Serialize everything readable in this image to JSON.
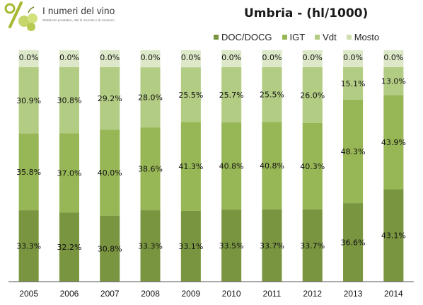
{
  "logo": {
    "title": "I numeri del vino",
    "subtitle": "Statistiche produttive, dati di mercato e di consumo"
  },
  "colors": {
    "DOC/DOCG": "#7a9540",
    "IGT": "#97b655",
    "Vdt": "#b3cc83",
    "Mosto": "#d0dfb0",
    "background_band": "#dce8c8"
  },
  "chart_data": {
    "type": "bar",
    "stacked": true,
    "percent": true,
    "title": "Umbria - (hl/1000)",
    "xlabel": "",
    "ylabel": "",
    "ylim": [
      0,
      100
    ],
    "legend_position": "top-right",
    "categories": [
      "2005",
      "2006",
      "2007",
      "2008",
      "2009",
      "2010",
      "2011",
      "2012",
      "2013",
      "2014"
    ],
    "series": [
      {
        "name": "DOC/DOCG",
        "values": [
          33.3,
          32.2,
          30.8,
          33.3,
          33.1,
          33.5,
          33.7,
          33.7,
          36.6,
          43.1
        ],
        "labels": [
          "33.3%",
          "32.2%",
          "30.8%",
          "33.3%",
          "33.1%",
          "33.5%",
          "33.7%",
          "33.7%",
          "36.6%",
          "43.1%"
        ]
      },
      {
        "name": "IGT",
        "values": [
          35.8,
          37.0,
          40.0,
          38.6,
          41.3,
          40.8,
          40.8,
          40.3,
          48.3,
          43.9
        ],
        "labels": [
          "35.8%",
          "37.0%",
          "40.0%",
          "38.6%",
          "41.3%",
          "40.8%",
          "40.8%",
          "40.3%",
          "48.3%",
          "43.9%"
        ]
      },
      {
        "name": "Vdt",
        "values": [
          30.9,
          30.8,
          29.2,
          28.0,
          25.5,
          25.7,
          25.5,
          26.0,
          15.1,
          13.0
        ],
        "labels": [
          "30.9%",
          "30.8%",
          "29.2%",
          "28.0%",
          "25.5%",
          "25.7%",
          "25.5%",
          "26.0%",
          "15.1%",
          "13.0%"
        ]
      },
      {
        "name": "Mosto",
        "values": [
          0.0,
          0.0,
          0.0,
          0.0,
          0.0,
          0.0,
          0.0,
          0.0,
          0.0,
          0.0
        ],
        "labels": [
          "0.0%",
          "0.0%",
          "0.0%",
          "0.0%",
          "0.0%",
          "0.0%",
          "0.0%",
          "0.0%",
          "0.0%",
          "0.0%"
        ]
      }
    ]
  }
}
